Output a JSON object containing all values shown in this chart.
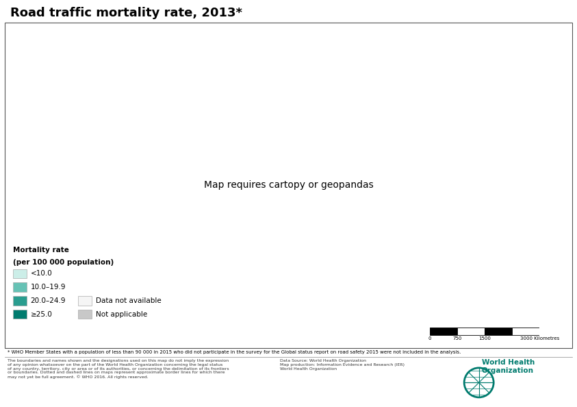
{
  "title": "Road traffic mortality rate, 2013*",
  "title_fontsize": 13,
  "title_fontweight": "bold",
  "legend_title_line1": "Mortality rate",
  "legend_title_line2": "(per 100 000 population)",
  "legend_entries": [
    {
      "label": "<10.0",
      "color": "#cceee8"
    },
    {
      "label": "10.0–19.9",
      "color": "#66c2b5"
    },
    {
      "label": "20.0–24.9",
      "color": "#2a9d8f"
    },
    {
      "label": "≥25.0",
      "color": "#007b6e"
    }
  ],
  "legend_extra": [
    {
      "label": "Data not available",
      "color": "#f5f5f5"
    },
    {
      "label": "Not applicable",
      "color": "#c8c8c8"
    }
  ],
  "footnote": "* WHO Member States with a population of less than 90 000 in 2015 who did not participate in the survey for the Global status report on road safety 2015 were not included in the analysis.",
  "footer_left": "The boundaries and names shown and the designations used on this map do not imply the expression\nof any opinion whatsoever on the part of the World Health Organization concerning the legal status\nof any country, territory, city or area or of its authorities, or concerning the delimitation of its frontiers\nor boundaries. Dotted and dashed lines on maps represent approximate border lines for which there\nmay not yet be full agreement. © WHO 2016. All rights reserved.",
  "footer_right": "Data Source: World Health Organization\nMap production: Information Evidence and Research (IER)\nWorld Health Organization",
  "background_color": "#ffffff",
  "ocean_color": "#c8e6f0",
  "border_color": "#ffffff",
  "border_width": 0.3,
  "color_no_data": "#f5f5f5",
  "color_not_applicable": "#c8c8c8",
  "country_colors": {
    "AGO": "#007b6e",
    "BEN": "#007b6e",
    "BFA": "#2a9d8f",
    "BDI": "#007b6e",
    "CMR": "#007b6e",
    "CAF": "#007b6e",
    "TCD": "#007b6e",
    "COD": "#007b6e",
    "COG": "#007b6e",
    "CIV": "#007b6e",
    "ETH": "#007b6e",
    "GAB": "#2a9d8f",
    "GHA": "#007b6e",
    "GIN": "#007b6e",
    "KEN": "#007b6e",
    "LBR": "#007b6e",
    "MDG": "#007b6e",
    "MWI": "#007b6e",
    "MLI": "#007b6e",
    "MRT": "#2a9d8f",
    "MOZ": "#007b6e",
    "NAM": "#2a9d8f",
    "NER": "#007b6e",
    "NGA": "#007b6e",
    "RWA": "#007b6e",
    "SEN": "#2a9d8f",
    "SLE": "#007b6e",
    "SOM": "#f5f5f5",
    "ZAF": "#2a9d8f",
    "SSD": "#007b6e",
    "SDN": "#007b6e",
    "TZA": "#007b6e",
    "TGO": "#007b6e",
    "UGA": "#007b6e",
    "ZMB": "#007b6e",
    "ZWE": "#007b6e",
    "DZA": "#2a9d8f",
    "EGY": "#2a9d8f",
    "LBY": "#2a9d8f",
    "MAR": "#2a9d8f",
    "TUN": "#2a9d8f",
    "ESH": "#c8c8c8",
    "IRQ": "#007b6e",
    "IRN": "#2a9d8f",
    "SAU": "#007b6e",
    "YEM": "#007b6e",
    "OMN": "#2a9d8f",
    "ARE": "#2a9d8f",
    "KWT": "#2a9d8f",
    "BHR": "#2a9d8f",
    "QAT": "#2a9d8f",
    "JOR": "#2a9d8f",
    "LBN": "#66c2b5",
    "SYR": "#007b6e",
    "ISR": "#66c2b5",
    "TUR": "#66c2b5",
    "AFG": "#007b6e",
    "PAK": "#007b6e",
    "IND": "#66c2b5",
    "BGD": "#66c2b5",
    "LKA": "#66c2b5",
    "MMR": "#007b6e",
    "THA": "#66c2b5",
    "VNM": "#66c2b5",
    "KHM": "#66c2b5",
    "LAO": "#66c2b5",
    "MYS": "#66c2b5",
    "IDN": "#66c2b5",
    "PHL": "#66c2b5",
    "CHN": "#66c2b5",
    "MNG": "#66c2b5",
    "KOR": "#cceee8",
    "PRK": "#66c2b5",
    "JPN": "#cceee8",
    "NPL": "#66c2b5",
    "BTN": "#66c2b5",
    "KAZ": "#66c2b5",
    "UZB": "#66c2b5",
    "TKM": "#66c2b5",
    "KGZ": "#66c2b5",
    "TJK": "#66c2b5",
    "AZE": "#66c2b5",
    "ARM": "#66c2b5",
    "GEO": "#66c2b5",
    "RUS": "#66c2b5",
    "UKR": "#66c2b5",
    "BLR": "#66c2b5",
    "MDA": "#66c2b5",
    "ROU": "#66c2b5",
    "BGR": "#66c2b5",
    "GRC": "#cceee8",
    "ALB": "#66c2b5",
    "MKD": "#66c2b5",
    "SRB": "#66c2b5",
    "BIH": "#66c2b5",
    "HRV": "#cceee8",
    "SVN": "#cceee8",
    "HUN": "#cceee8",
    "SVK": "#cceee8",
    "CZE": "#cceee8",
    "POL": "#cceee8",
    "LTU": "#66c2b5",
    "LVA": "#66c2b5",
    "EST": "#cceee8",
    "FIN": "#cceee8",
    "SWE": "#cceee8",
    "NOR": "#cceee8",
    "DNK": "#cceee8",
    "DEU": "#cceee8",
    "NLD": "#cceee8",
    "BEL": "#cceee8",
    "GBR": "#cceee8",
    "IRL": "#cceee8",
    "FRA": "#cceee8",
    "ESP": "#cceee8",
    "PRT": "#cceee8",
    "ITA": "#cceee8",
    "CHE": "#cceee8",
    "AUT": "#cceee8",
    "LUX": "#cceee8",
    "ISL": "#cceee8",
    "MLT": "#cceee8",
    "CYP": "#cceee8",
    "MNE": "#66c2b5",
    "XKX": "#f5f5f5",
    "USA": "#cceee8",
    "CAN": "#cceee8",
    "MEX": "#66c2b5",
    "GTM": "#66c2b5",
    "BLZ": "#66c2b5",
    "HND": "#66c2b5",
    "SLV": "#66c2b5",
    "NIC": "#66c2b5",
    "CRI": "#66c2b5",
    "PAN": "#66c2b5",
    "CUB": "#66c2b5",
    "DOM": "#66c2b5",
    "HTI": "#2a9d8f",
    "JAM": "#66c2b5",
    "VEN": "#2a9d8f",
    "COL": "#66c2b5",
    "ECU": "#66c2b5",
    "PER": "#66c2b5",
    "BOL": "#2a9d8f",
    "BRA": "#66c2b5",
    "PRY": "#2a9d8f",
    "ARG": "#66c2b5",
    "CHL": "#cceee8",
    "URY": "#cceee8",
    "GUY": "#66c2b5",
    "SUR": "#66c2b5",
    "TTO": "#66c2b5",
    "GNQ": "#007b6e",
    "ERI": "#007b6e",
    "DJI": "#2a9d8f",
    "COM": "#f5f5f5",
    "CPV": "#f5f5f5",
    "STP": "#f5f5f5",
    "MUS": "#cceee8",
    "SYC": "#f5f5f5",
    "TLS": "#f5f5f5",
    "BRN": "#f5f5f5",
    "SGP": "#cceee8",
    "PNG": "#66c2b5",
    "AUS": "#cceee8",
    "NZL": "#cceee8",
    "FJI": "#f5f5f5",
    "WSM": "#f5f5f5",
    "SLB": "#f5f5f5",
    "VUT": "#f5f5f5",
    "TON": "#f5f5f5",
    "KIR": "#f5f5f5",
    "FSM": "#f5f5f5",
    "MHL": "#f5f5f5",
    "PLW": "#f5f5f5",
    "NRU": "#f5f5f5",
    "TUV": "#f5f5f5",
    "MDV": "#f5f5f5",
    "GMB": "#2a9d8f",
    "GNB": "#007b6e",
    "LSO": "#007b6e",
    "SWZ": "#007b6e",
    "BWA": "#2a9d8f",
    "GRL": "#f5f5f5",
    "PSE": "#66c2b5",
    "TWN": "#cceee8",
    "MAC": "#c8c8c8",
    "HKG": "#c8c8c8"
  }
}
